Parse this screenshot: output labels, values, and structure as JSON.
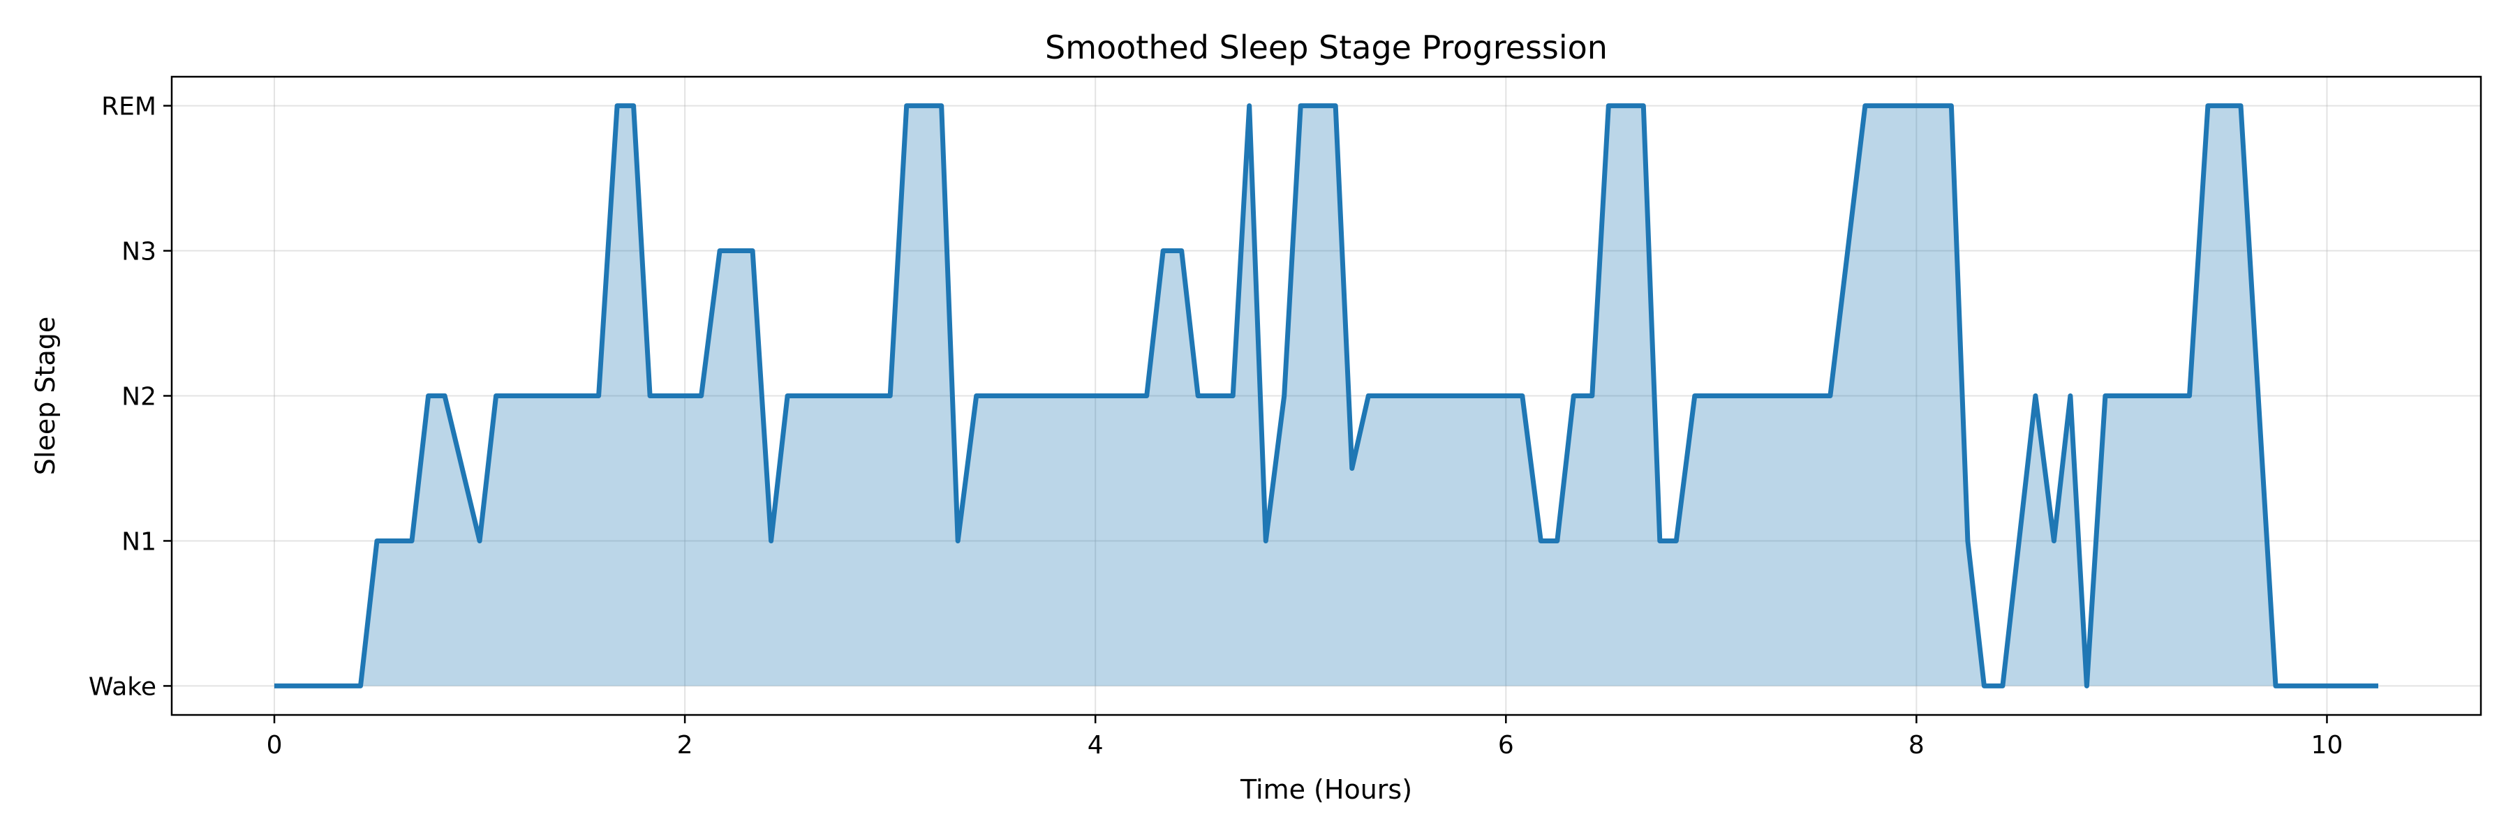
{
  "chart_data": {
    "type": "area",
    "title": "Smoothed Sleep Stage Progression",
    "xlabel": "Time (Hours)",
    "ylabel": "Sleep Stage",
    "xlim": [
      -0.5,
      10.75
    ],
    "ylim": [
      -0.2,
      4.2
    ],
    "xticks": [
      0,
      2,
      4,
      6,
      8,
      10
    ],
    "xtick_labels": [
      "0",
      "2",
      "4",
      "6",
      "8",
      "10"
    ],
    "yticks": [
      0,
      1,
      2,
      3,
      4
    ],
    "ytick_labels": [
      "Wake",
      "N1",
      "N2",
      "N3",
      "REM"
    ],
    "grid": true,
    "colors": {
      "line": "#1f77b4",
      "fill": "#1f77b4",
      "fill_opacity": 0.3
    },
    "series": [
      {
        "x": [
          0,
          0.42,
          0.5,
          0.67,
          0.75,
          0.83,
          1.0,
          1.08,
          1.58,
          1.67,
          1.75,
          1.83,
          2.08,
          2.17,
          2.33,
          2.42,
          2.5,
          3.0,
          3.08,
          3.25,
          3.33,
          3.42,
          4.25,
          4.33,
          4.42,
          4.5,
          4.67,
          4.75,
          4.83,
          4.92,
          5.0,
          5.17,
          5.25,
          5.33,
          6.08,
          6.17,
          6.25,
          6.33,
          6.42,
          6.5,
          6.67,
          6.75,
          6.83,
          6.92,
          7.58,
          7.75,
          8.17,
          8.25,
          8.33,
          8.42,
          8.58,
          8.67,
          8.75,
          8.83,
          8.92,
          9.33,
          9.42,
          9.58,
          9.75,
          10.25
        ],
        "y": [
          0,
          0,
          1,
          1,
          2,
          2,
          1,
          2,
          2,
          4,
          4,
          2,
          2,
          3,
          3,
          1,
          2,
          2,
          4,
          4,
          1,
          2,
          2,
          3,
          3,
          2,
          2,
          4,
          1,
          2,
          4,
          4,
          1.5,
          2,
          2,
          1,
          1,
          2,
          2,
          4,
          4,
          1,
          1,
          2,
          2,
          4,
          4,
          1,
          0,
          0,
          2,
          1,
          2,
          0,
          2,
          2,
          4,
          4,
          0,
          0
        ]
      }
    ]
  }
}
